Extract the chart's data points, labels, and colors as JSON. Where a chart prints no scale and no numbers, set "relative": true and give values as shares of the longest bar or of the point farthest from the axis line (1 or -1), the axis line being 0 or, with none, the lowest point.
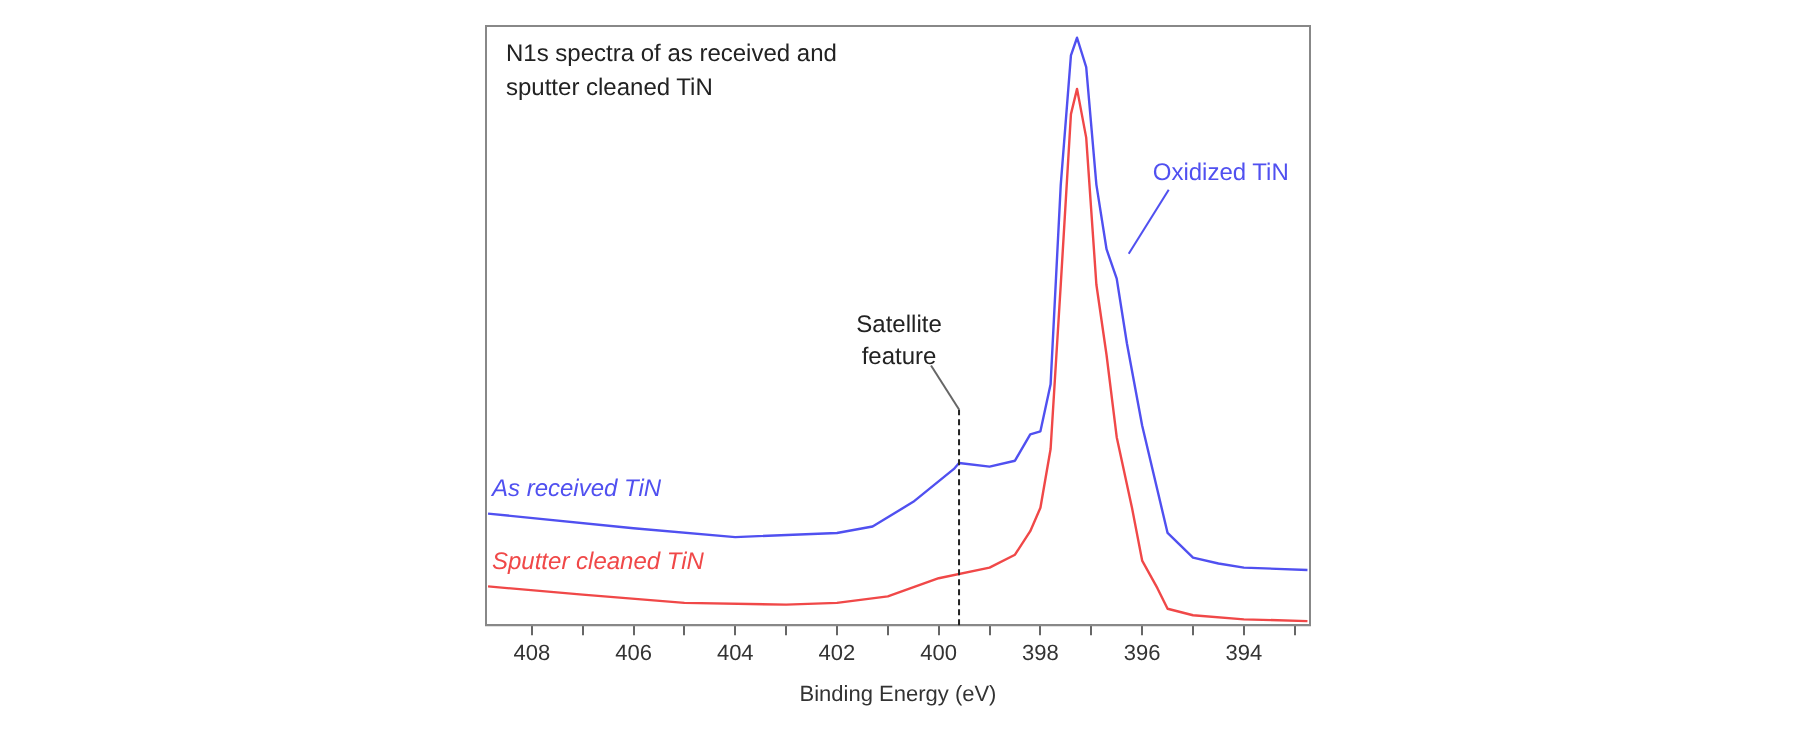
{
  "chart_data": {
    "type": "line",
    "title": "N1s spectra of as received and sputter cleaned TiN",
    "xlabel": "Binding Energy (eV)",
    "relative": true,
    "xlim": [
      408.9,
      392.7
    ],
    "xticks": [
      408,
      {
        "value": 407,
        "label": null
      },
      406,
      {
        "value": 405,
        "label": null
      },
      404,
      {
        "value": 403,
        "label": null
      },
      402,
      {
        "value": 401,
        "label": null
      },
      400,
      {
        "value": 399,
        "label": null
      },
      398,
      {
        "value": 397,
        "label": null
      },
      396,
      {
        "value": 395,
        "label": null
      },
      394,
      {
        "value": 393,
        "label": null
      }
    ],
    "grid": false,
    "legend": false,
    "marker": "none",
    "line_style": "solid",
    "annotations": [
      "Oxidized TiN"
    ],
    "ref_lines": [
      {
        "axis": "x",
        "value": 399.6,
        "label": "Satellite feature",
        "color": "#222222",
        "line_style": "dashed"
      }
    ],
    "series": [
      {
        "name": "As received TiN",
        "color": "#5050f0",
        "x": [
          408.86,
          406,
          404,
          402,
          401.3,
          400.5,
          399.7,
          399.6,
          399.0,
          398.5,
          398.2,
          398.0,
          397.8,
          397.6,
          397.4,
          397.28,
          397.1,
          396.9,
          396.7,
          396.5,
          396.3,
          396.0,
          395.7,
          395.5,
          395.0,
          394.5,
          394.0,
          392.75
        ],
        "values": [
          0.19,
          0.165,
          0.15,
          0.157,
          0.168,
          0.21,
          0.266,
          0.276,
          0.27,
          0.28,
          0.325,
          0.33,
          0.41,
          0.75,
          0.97,
          1,
          0.95,
          0.75,
          0.64,
          0.59,
          0.48,
          0.34,
          0.23,
          0.157,
          0.115,
          0.105,
          0.098,
          0.094
        ]
      },
      {
        "name": "Sputter cleaned TiN",
        "color": "#f04848",
        "x": [
          408.86,
          407,
          405,
          403,
          402,
          401,
          400,
          399,
          398.5,
          398.2,
          398.0,
          397.8,
          397.6,
          397.4,
          397.28,
          397.1,
          396.9,
          396.7,
          396.5,
          396.2,
          396.0,
          395.7,
          395.5,
          395.0,
          394.0,
          392.75
        ],
        "values": [
          0.066,
          0.052,
          0.038,
          0.035,
          0.038,
          0.049,
          0.08,
          0.098,
          0.12,
          0.16,
          0.2,
          0.3,
          0.58,
          0.87,
          0.913,
          0.83,
          0.58,
          0.46,
          0.32,
          0.2,
          0.11,
          0.063,
          0.028,
          0.017,
          0.01,
          0.007
        ]
      }
    ]
  }
}
